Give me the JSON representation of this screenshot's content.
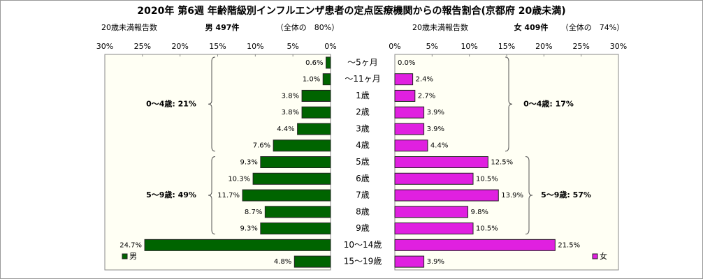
{
  "chart_data": {
    "type": "pyramid",
    "title": "2020年 第6週 年齢階級別インフルエンザ患者の定点医療機関からの報告割合(京都府 20歳未満)",
    "categories": [
      "～5ヶ月",
      "～11ヶ月",
      "1歳",
      "2歳",
      "3歳",
      "4歳",
      "5歳",
      "6歳",
      "7歳",
      "8歳",
      "9歳",
      "10～14歳",
      "15～19歳"
    ],
    "series": [
      {
        "name": "男",
        "color": "#006400",
        "count_label": "20歳未満報告数",
        "total": "男 497件",
        "share": "（全体の　80%）",
        "values": [
          0.6,
          1.0,
          3.8,
          3.8,
          4.4,
          7.6,
          9.3,
          10.3,
          11.7,
          8.7,
          9.3,
          24.7,
          4.8
        ],
        "value_labels": [
          "0.6%",
          "1.0%",
          "3.8%",
          "3.8%",
          "4.4%",
          "7.6%",
          "9.3%",
          "10.3%",
          "11.7%",
          "8.7%",
          "9.3%",
          "24.7%",
          "4.8%"
        ]
      },
      {
        "name": "女",
        "color": "#e020e0",
        "count_label": "20歳未満報告数",
        "total": "女 409件",
        "share": "（全体の　74%）",
        "values": [
          0.0,
          2.4,
          2.7,
          3.9,
          3.9,
          4.4,
          12.5,
          10.5,
          13.9,
          9.8,
          10.5,
          21.5,
          3.9
        ],
        "value_labels": [
          "0.0%",
          "2.4%",
          "2.7%",
          "3.9%",
          "3.9%",
          "4.4%",
          "12.5%",
          "10.5%",
          "13.9%",
          "9.8%",
          "10.5%",
          "21.5%",
          "3.9%"
        ]
      }
    ],
    "xlim": [
      0,
      30
    ],
    "xticks": [
      {
        "value": 0,
        "label": "0%"
      },
      {
        "value": 5,
        "label": "5%"
      },
      {
        "value": 10,
        "label": "10%"
      },
      {
        "value": 15,
        "label": "15%"
      },
      {
        "value": 20,
        "label": "20%"
      },
      {
        "value": 25,
        "label": "25%"
      },
      {
        "value": 30,
        "label": "30%"
      }
    ],
    "annotations": [
      "0～4歳: 21%",
      "5～9歳: 49%",
      "0～4歳: 17%",
      "5～9歳: 57%"
    ]
  }
}
